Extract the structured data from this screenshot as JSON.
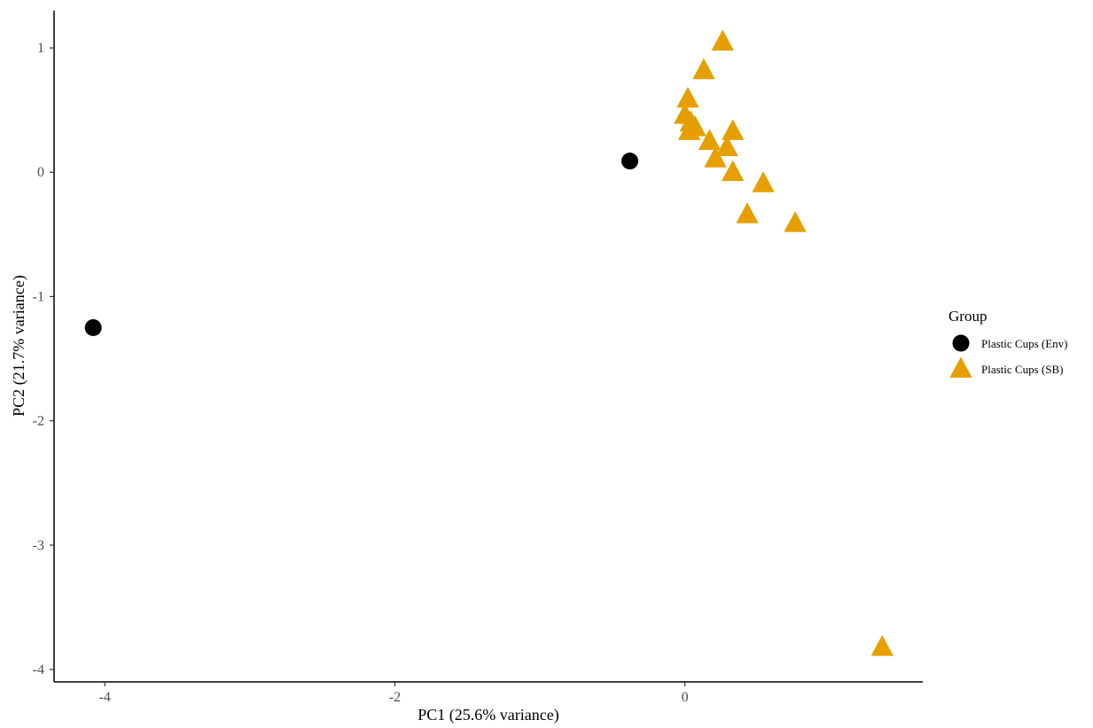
{
  "chart_data": {
    "type": "scatter",
    "title": "",
    "xlabel": "PC1 (25.6% variance)",
    "ylabel": "PC2 (21.7% variance)",
    "xlim": [
      -4.35,
      1.64
    ],
    "ylim": [
      -4.1,
      1.3
    ],
    "x_ticks": [
      -4,
      -2,
      0
    ],
    "x_tick_labels": [
      "-4",
      "-2",
      "0"
    ],
    "y_ticks": [
      1,
      0,
      -1,
      -2,
      -3,
      -4
    ],
    "y_tick_labels": [
      "1",
      "0",
      "-1",
      "-2",
      "-3",
      "-4"
    ],
    "grid": false,
    "legend": {
      "title": "Group",
      "position": "right"
    },
    "series": [
      {
        "name": "Plastic Cups (Env)",
        "marker": "circle",
        "color": "#000000",
        "points": [
          {
            "x": -4.08,
            "y": -1.25
          },
          {
            "x": -0.38,
            "y": 0.09
          }
        ]
      },
      {
        "name": "Plastic Cups (SB)",
        "marker": "triangle",
        "color": "#E69F00",
        "points": [
          {
            "x": 0.26,
            "y": 1.05
          },
          {
            "x": 0.13,
            "y": 0.82
          },
          {
            "x": 0.02,
            "y": 0.59
          },
          {
            "x": 0.0,
            "y": 0.46
          },
          {
            "x": 0.04,
            "y": 0.4
          },
          {
            "x": 0.07,
            "y": 0.36
          },
          {
            "x": 0.03,
            "y": 0.33
          },
          {
            "x": 0.33,
            "y": 0.33
          },
          {
            "x": 0.17,
            "y": 0.25
          },
          {
            "x": 0.29,
            "y": 0.2
          },
          {
            "x": 0.21,
            "y": 0.11
          },
          {
            "x": 0.33,
            "y": 0.0
          },
          {
            "x": 0.54,
            "y": -0.09
          },
          {
            "x": 0.43,
            "y": -0.34
          },
          {
            "x": 0.76,
            "y": -0.41
          },
          {
            "x": 1.36,
            "y": -3.82
          }
        ]
      }
    ]
  }
}
